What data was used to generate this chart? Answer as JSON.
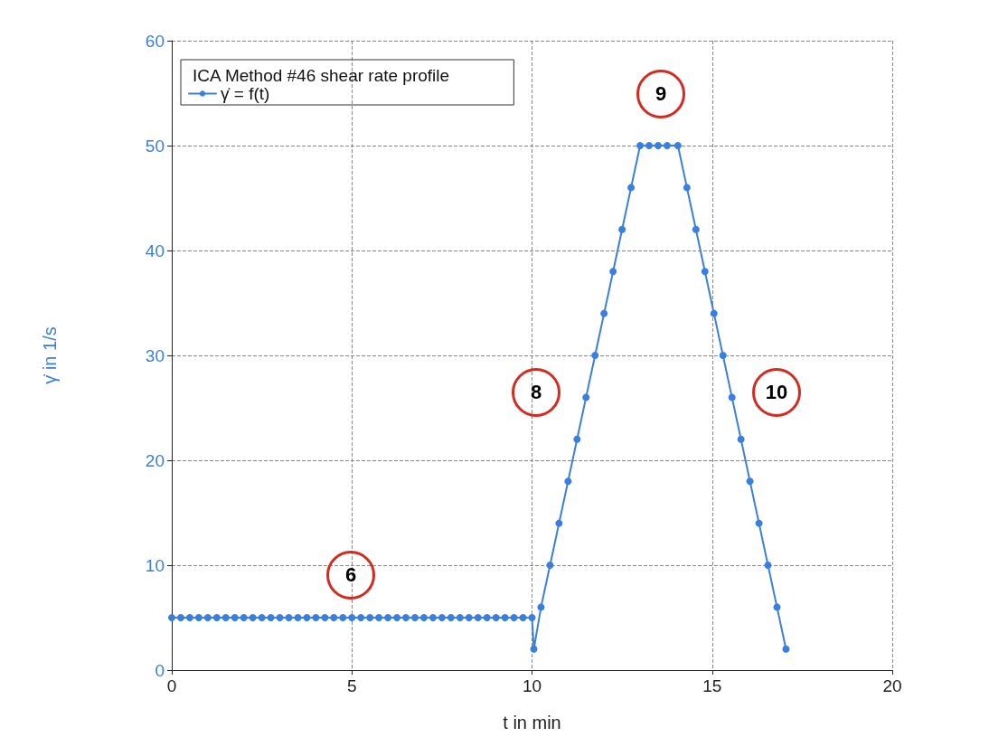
{
  "chart_data": {
    "type": "line",
    "xlabel": "t in min",
    "ylabel": "γ̇ in 1/s",
    "legend_title": "ICA Method #46 shear rate profile",
    "xlim": [
      0,
      20
    ],
    "xticks": [
      0,
      5,
      10,
      15,
      20
    ],
    "ylim": [
      0,
      60
    ],
    "yticks": [
      0,
      10,
      20,
      30,
      40,
      50,
      60
    ],
    "grid": true,
    "legend": "top left",
    "marker": "circle",
    "line_style": "solid",
    "annotations": [
      "6",
      "8",
      "9",
      "10"
    ],
    "series": [
      {
        "name": "γ̇ = f(t)",
        "color": "#3a7fe0",
        "x": [
          0,
          0.25,
          0.5,
          0.75,
          1,
          1.25,
          1.5,
          1.75,
          2,
          2.25,
          2.5,
          2.75,
          3,
          3.25,
          3.5,
          3.75,
          4,
          4.25,
          4.5,
          4.75,
          5,
          5.25,
          5.5,
          5.75,
          6,
          6.25,
          6.5,
          6.75,
          7,
          7.25,
          7.5,
          7.75,
          8,
          8.25,
          8.5,
          8.75,
          9,
          9.25,
          9.5,
          9.75,
          10,
          10.05,
          10.25,
          10.5,
          10.75,
          11,
          11.25,
          11.5,
          11.75,
          12,
          12.25,
          12.5,
          12.75,
          13,
          13.25,
          13.5,
          13.75,
          14.05,
          14.3,
          14.55,
          14.8,
          15.05,
          15.3,
          15.55,
          15.8,
          16.05,
          16.3,
          16.55,
          16.8,
          17.05
        ],
        "values": [
          5,
          5,
          5,
          5,
          5,
          5,
          5,
          5,
          5,
          5,
          5,
          5,
          5,
          5,
          5,
          5,
          5,
          5,
          5,
          5,
          5,
          5,
          5,
          5,
          5,
          5,
          5,
          5,
          5,
          5,
          5,
          5,
          5,
          5,
          5,
          5,
          5,
          5,
          5,
          5,
          5,
          2,
          6,
          10,
          14,
          18,
          22,
          26,
          30,
          34,
          38,
          42,
          46,
          50,
          50,
          50,
          50,
          50,
          46,
          42,
          38,
          34,
          30,
          26,
          22,
          18,
          14,
          10,
          6,
          2
        ]
      }
    ]
  }
}
